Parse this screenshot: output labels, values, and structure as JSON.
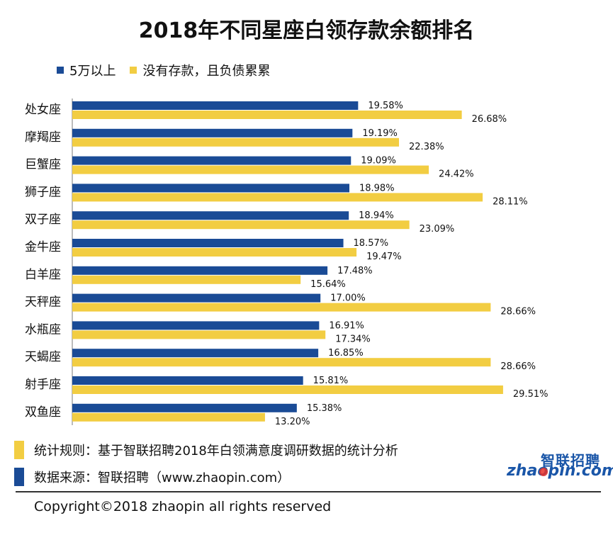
{
  "title": "2018年不同星座白领存款余额排名",
  "colors": {
    "series1": "#1a4b96",
    "series2": "#f2cd42",
    "logo": "#1a56a8",
    "logo_dot": "#e8312a"
  },
  "chart_data": {
    "type": "bar",
    "orientation": "horizontal",
    "title": "2018年不同星座白领存款余额排名",
    "categories": [
      "处女座",
      "摩羯座",
      "巨蟹座",
      "狮子座",
      "双子座",
      "金牛座",
      "白羊座",
      "天秤座",
      "水瓶座",
      "天蝎座",
      "射手座",
      "双鱼座"
    ],
    "series": [
      {
        "name": "5万以上",
        "values": [
          19.58,
          19.19,
          19.09,
          18.98,
          18.94,
          18.57,
          17.48,
          17.0,
          16.91,
          16.85,
          15.81,
          15.38
        ]
      },
      {
        "name": "没有存款，且负债累累",
        "values": [
          26.68,
          22.38,
          24.42,
          28.11,
          23.09,
          19.47,
          15.64,
          28.66,
          17.34,
          28.66,
          29.51,
          13.2
        ]
      }
    ],
    "value_labels": [
      [
        "19.58%",
        "19.19%",
        "19.09%",
        "18.98%",
        "18.94%",
        "18.57%",
        "17.48%",
        "17.00%",
        "16.91%",
        "16.85%",
        "15.81%",
        "15.38%"
      ],
      [
        "26.68%",
        "22.38%",
        "24.42%",
        "28.11%",
        "23.09%",
        "19.47%",
        "15.64%",
        "28.66%",
        "17.34%",
        "28.66%",
        "29.51%",
        "13.20%"
      ]
    ],
    "legend_position": "top-left",
    "grid": false
  },
  "notes": [
    {
      "text": "统计规则：基于智联招聘2018年白领满意度调研数据的统计分析",
      "color": "#f2cd42"
    },
    {
      "text": "数据来源：智联招聘（www.zhaopin.com）",
      "color": "#1a4b96"
    }
  ],
  "copyright": "Copyright©2018 zhaopin all rights reserved",
  "logo": {
    "cn": "智联招聘",
    "en": "zhaopin.com"
  }
}
